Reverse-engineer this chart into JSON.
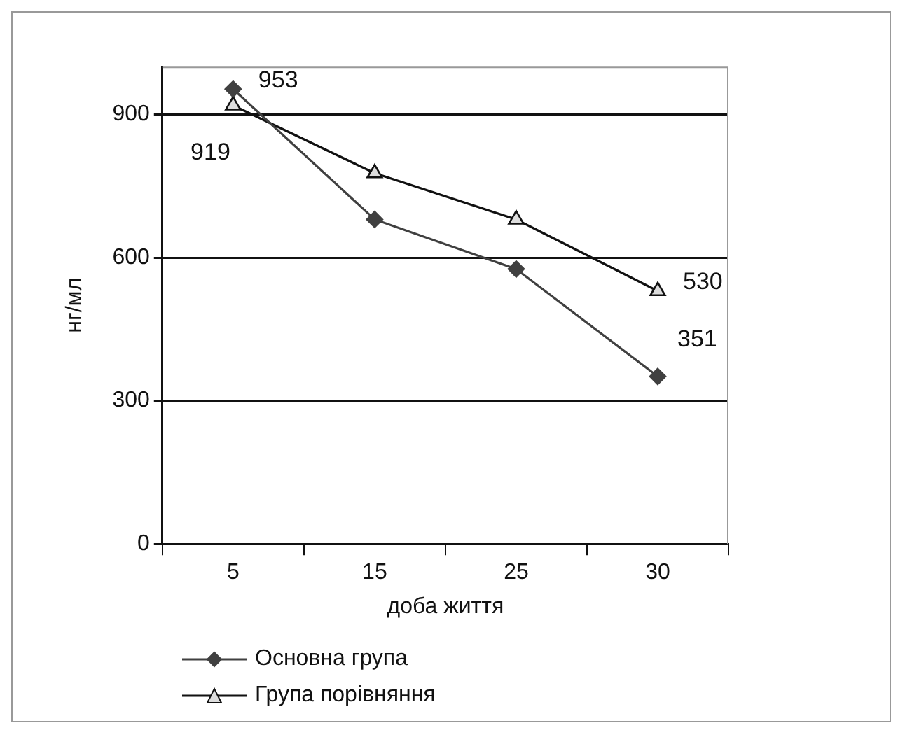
{
  "chart_data": {
    "type": "line",
    "xlabel": "доба життя",
    "ylabel": "нг/мл",
    "categories": [
      "5",
      "15",
      "25",
      "30"
    ],
    "series": [
      {
        "name": "Основна група",
        "color": "#404040",
        "marker": "diamond",
        "values": [
          953,
          680,
          576,
          351
        ],
        "value_labels": [
          "953",
          null,
          null,
          "351"
        ]
      },
      {
        "name": "Група порівняння",
        "color": "#111111",
        "marker": "triangle",
        "values": [
          919,
          777,
          680,
          530
        ],
        "value_labels": [
          "919",
          null,
          null,
          "530"
        ]
      }
    ],
    "ylim": [
      0,
      1000
    ],
    "yticks": [
      0,
      300,
      600,
      900
    ],
    "grid": "y",
    "legend": "bottom"
  }
}
